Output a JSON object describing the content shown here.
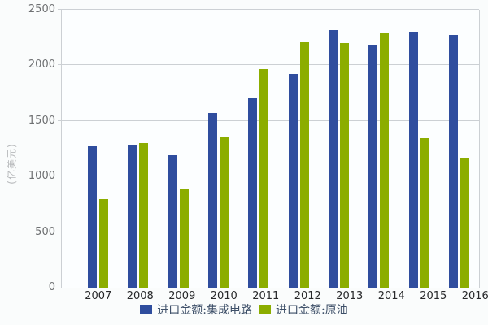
{
  "chart_data": {
    "type": "bar",
    "title": "",
    "ylabel": "(亿美元)",
    "xlabel": "",
    "ylim": [
      0,
      2500
    ],
    "ytick_interval": 500,
    "yticks": [
      0,
      500,
      1000,
      1500,
      2000,
      2500
    ],
    "grid": true,
    "legend_position": "bottom",
    "categories": [
      "2007",
      "2008",
      "2009",
      "2010",
      "2011",
      "2012",
      "2013",
      "2014",
      "2015",
      "2016"
    ],
    "series": [
      {
        "name": "进口金额:集成电路",
        "color": "#2F4D9E",
        "values": [
          1275,
          1290,
          1195,
          1570,
          1700,
          1920,
          2315,
          2180,
          2300,
          2270
        ]
      },
      {
        "name": "进口金额:原油",
        "color": "#8CAD00",
        "values": [
          800,
          1300,
          890,
          1355,
          1965,
          2210,
          2200,
          2290,
          1345,
          1165
        ]
      }
    ]
  },
  "colors": {
    "series_ic": "#2F4D9E",
    "series_oil": "#8CAD00",
    "grid": "#ccd0d4",
    "axis": "#b4b8bc",
    "y_tick_text": "#6e7072",
    "x_tick_text": "#28292b",
    "y_title_text": "#b6b8ba",
    "legend_text": "#3d4f68",
    "background": "#fafcfc",
    "plot_background": "#fcfeff"
  }
}
